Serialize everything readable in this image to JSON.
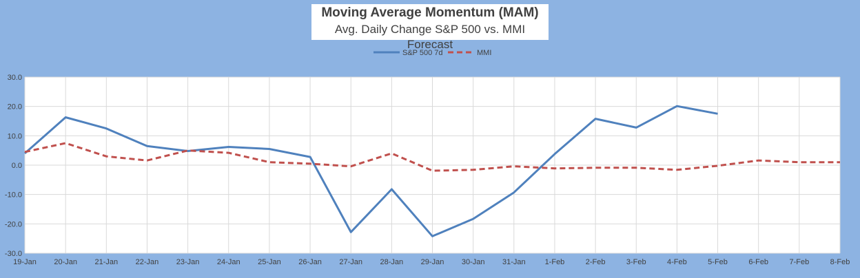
{
  "chart_data": {
    "type": "line",
    "title": "Moving Average Momentum (MAM)",
    "subtitle": "Avg. Daily Change S&P 500 vs. MMI Forecast",
    "categories": [
      "19-Jan",
      "20-Jan",
      "21-Jan",
      "22-Jan",
      "23-Jan",
      "24-Jan",
      "25-Jan",
      "26-Jan",
      "27-Jan",
      "28-Jan",
      "29-Jan",
      "30-Jan",
      "31-Jan",
      "1-Feb",
      "2-Feb",
      "3-Feb",
      "4-Feb",
      "5-Feb",
      "6-Feb",
      "7-Feb",
      "8-Feb"
    ],
    "series": [
      {
        "name": "S&P 500 7d",
        "color": "#4f81bd",
        "dash": "solid",
        "values": [
          4.0,
          16.3,
          12.5,
          6.5,
          4.8,
          6.2,
          5.5,
          2.8,
          -22.8,
          -8.2,
          -24.2,
          -18.3,
          -9.3,
          3.8,
          15.8,
          12.8,
          20.1,
          17.5,
          null,
          null,
          null
        ]
      },
      {
        "name": "MMI",
        "color": "#c0504d",
        "dash": "dashed",
        "values": [
          4.5,
          7.5,
          3.0,
          1.6,
          5.0,
          4.2,
          1.0,
          0.5,
          -0.4,
          4.0,
          -1.9,
          -1.6,
          -0.4,
          -1.1,
          -0.9,
          -0.9,
          -1.6,
          -0.2,
          1.6,
          1.0,
          1.0
        ]
      }
    ],
    "ylim": [
      -30,
      30
    ],
    "yticks": [
      "30.0",
      "20.0",
      "10.0",
      "0.0",
      "-10.0",
      "-20.0",
      "-30.0"
    ],
    "ytick_values": [
      30,
      20,
      10,
      0,
      -10,
      -20,
      -30
    ],
    "grid": true,
    "legend_position": "top"
  }
}
